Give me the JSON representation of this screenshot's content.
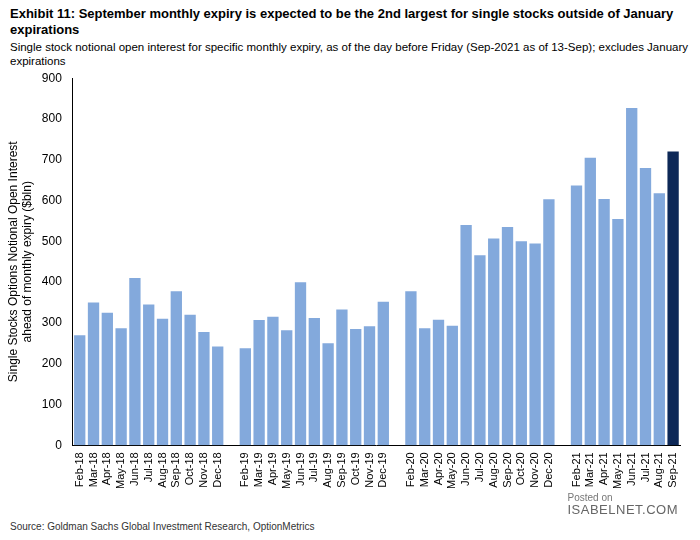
{
  "chart_data": {
    "type": "bar",
    "title": "Exhibit 11: September monthly expiry is expected to be the 2nd largest for single stocks outside of January expirations",
    "subtitle": "Single stock notional open interest for specific monthly expiry, as of the day before Friday (Sep-2021 as of 13-Sep); excludes January expirations",
    "y_label": [
      "Single Stocks Options Notional Open Interest",
      "ahead of monthly expiry ($bln)"
    ],
    "source": "Source: Goldman Sachs Global Investment Research, OptionMetrics",
    "annotations": [
      "Posted on",
      "ISABELNET.COM"
    ],
    "categories": [
      "Feb-18",
      "Mar-18",
      "Apr-18",
      "May-18",
      "Jun-18",
      "Jul-18",
      "Aug-18",
      "Sep-18",
      "Oct-18",
      "Nov-18",
      "Dec-18",
      null,
      "Feb-19",
      "Mar-19",
      "Apr-19",
      "May-19",
      "Jun-19",
      "Jul-19",
      "Aug-19",
      "Sep-19",
      "Oct-19",
      "Nov-19",
      "Dec-19",
      null,
      "Feb-20",
      "Mar-20",
      "Apr-20",
      "May-20",
      "Jun-20",
      "Jul-20",
      "Aug-20",
      "Sep-20",
      "Oct-20",
      "Nov-20",
      "Dec-20",
      null,
      "Feb-21",
      "Mar-21",
      "Apr-21",
      "May-21",
      "Jun-21",
      "Jul-21",
      "Aug-21",
      "Sep-21"
    ],
    "values": [
      270,
      350,
      325,
      287,
      410,
      345,
      310,
      378,
      320,
      278,
      242,
      null,
      238,
      307,
      315,
      282,
      400,
      312,
      250,
      333,
      285,
      292,
      352,
      null,
      378,
      287,
      308,
      293,
      540,
      466,
      507,
      535,
      500,
      495,
      603,
      null,
      637,
      705,
      604,
      555,
      827,
      680,
      618,
      720
    ],
    "colors": [
      "#83a9dc",
      "#83a9dc",
      "#83a9dc",
      "#83a9dc",
      "#83a9dc",
      "#83a9dc",
      "#83a9dc",
      "#83a9dc",
      "#83a9dc",
      "#83a9dc",
      "#83a9dc",
      "#83a9dc",
      "#83a9dc",
      "#83a9dc",
      "#83a9dc",
      "#83a9dc",
      "#83a9dc",
      "#83a9dc",
      "#83a9dc",
      "#83a9dc",
      "#83a9dc",
      "#83a9dc",
      "#83a9dc",
      "#83a9dc",
      "#83a9dc",
      "#83a9dc",
      "#83a9dc",
      "#83a9dc",
      "#83a9dc",
      "#83a9dc",
      "#83a9dc",
      "#83a9dc",
      "#83a9dc",
      "#83a9dc",
      "#83a9dc",
      "#83a9dc",
      "#83a9dc",
      "#83a9dc",
      "#83a9dc",
      "#83a9dc",
      "#83a9dc",
      "#83a9dc",
      "#83a9dc",
      "#0d2857"
    ],
    "ylim": [
      0,
      900
    ],
    "yticks": [
      0,
      100,
      200,
      300,
      400,
      500,
      600,
      700,
      800,
      900
    ],
    "grid": false,
    "tick_labels": true
  }
}
